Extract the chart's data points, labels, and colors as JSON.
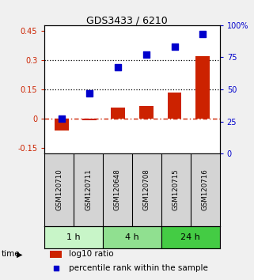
{
  "title": "GDS3433 / 6210",
  "samples": [
    "GSM120710",
    "GSM120711",
    "GSM120648",
    "GSM120708",
    "GSM120715",
    "GSM120716"
  ],
  "log10_ratio": [
    -0.06,
    -0.01,
    0.055,
    0.065,
    0.135,
    0.32
  ],
  "percentile_rank": [
    27,
    47,
    67,
    77,
    83,
    93
  ],
  "time_groups": [
    {
      "label": "1 h",
      "start": 0,
      "end": 2,
      "color": "#c8f5c8"
    },
    {
      "label": "4 h",
      "start": 2,
      "end": 4,
      "color": "#90e090"
    },
    {
      "label": "24 h",
      "start": 4,
      "end": 6,
      "color": "#44cc44"
    }
  ],
  "bar_color": "#cc2200",
  "dot_color": "#0000cc",
  "ylim_left": [
    -0.18,
    0.48
  ],
  "ylim_right": [
    0,
    100
  ],
  "yticks_left": [
    -0.15,
    0.0,
    0.15,
    0.3,
    0.45
  ],
  "yticks_left_labels": [
    "-0.15",
    "0",
    "0.15",
    "0.3",
    "0.45"
  ],
  "yticks_right": [
    0,
    25,
    50,
    75,
    100
  ],
  "yticks_right_labels": [
    "0",
    "25",
    "50",
    "75",
    "100%"
  ],
  "hlines": [
    0.15,
    0.3
  ],
  "zero_line_color": "#cc2200",
  "background_color": "#f0f0f0",
  "plot_bg": "#ffffff",
  "bar_width": 0.5,
  "dot_size": 30,
  "sample_box_color": "#d4d4d4",
  "legend_bar_color": "#cc2200",
  "legend_dot_color": "#0000cc"
}
